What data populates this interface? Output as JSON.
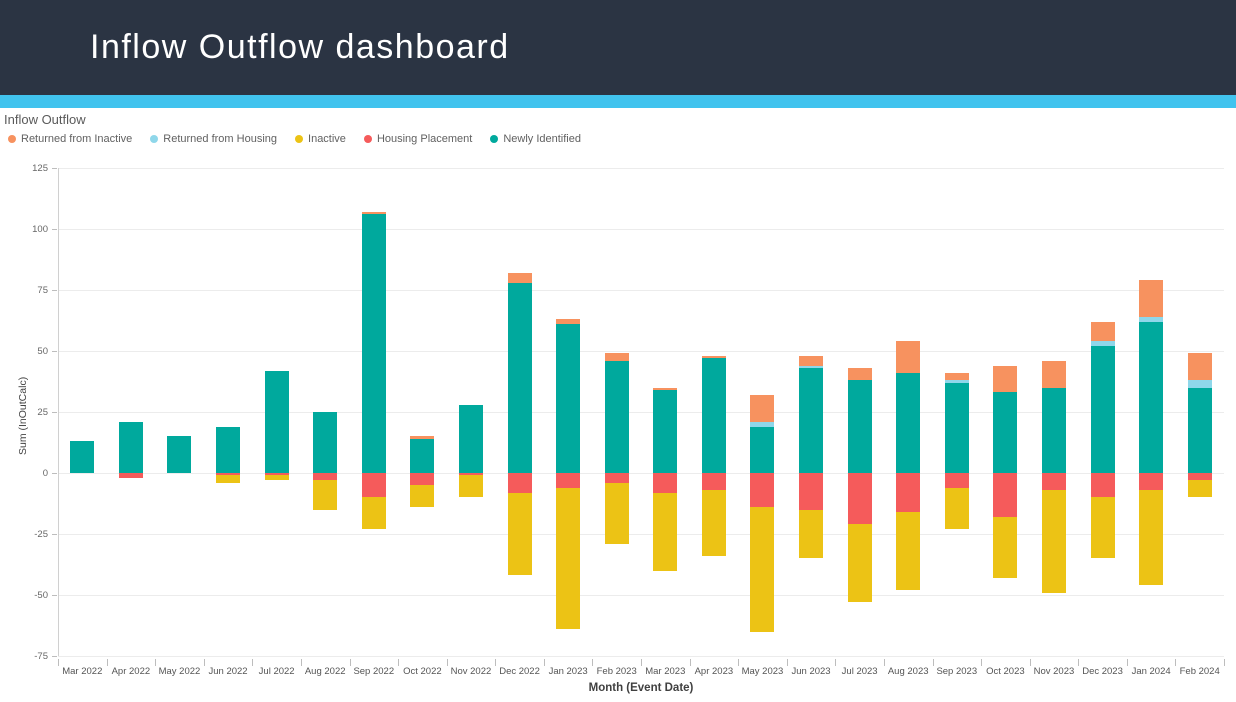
{
  "header": {
    "title": "Inflow Outflow dashboard"
  },
  "chart": {
    "title": "Inflow Outflow",
    "xlabel": "Month (Event Date)",
    "ylabel": "Sum (InOutCalc)"
  },
  "chart_data": {
    "type": "bar",
    "stacked": true,
    "title": "Inflow Outflow",
    "xlabel": "Month (Event Date)",
    "ylabel": "Sum (InOutCalc)",
    "ylim": [
      -75,
      125
    ],
    "yticks": [
      125,
      100,
      75,
      50,
      25,
      0,
      -25,
      -50,
      -75
    ],
    "grid": true,
    "legend_position": "top-left",
    "categories": [
      "Mar 2022",
      "Apr 2022",
      "May 2022",
      "Jun 2022",
      "Jul 2022",
      "Aug 2022",
      "Sep 2022",
      "Oct 2022",
      "Nov 2022",
      "Dec 2022",
      "Jan 2023",
      "Feb 2023",
      "Mar 2023",
      "Apr 2023",
      "May 2023",
      "Jun 2023",
      "Jul 2023",
      "Aug 2023",
      "Sep 2023",
      "Oct 2023",
      "Nov 2023",
      "Dec 2023",
      "Jan 2024",
      "Feb 2024"
    ],
    "series": [
      {
        "name": "Returned from Inactive",
        "color": "#F7925F",
        "values": [
          0,
          0,
          0,
          0,
          0,
          0,
          1,
          1,
          0,
          4,
          2,
          3,
          1,
          1,
          11,
          4,
          5,
          13,
          3,
          11,
          11,
          8,
          15,
          11
        ]
      },
      {
        "name": "Returned from Housing",
        "color": "#8FD7EA",
        "values": [
          0,
          0,
          0,
          0,
          0,
          0,
          0,
          0,
          0,
          0,
          0,
          0,
          0,
          0,
          2,
          1,
          0,
          0,
          1,
          0,
          0,
          2,
          2,
          3
        ]
      },
      {
        "name": "Inactive",
        "color": "#ECC315",
        "values": [
          0,
          0,
          0,
          -3,
          -2,
          -12,
          -13,
          -9,
          -9,
          -34,
          -58,
          -25,
          -32,
          -27,
          -51,
          -20,
          -32,
          -32,
          -17,
          -25,
          -42,
          -25,
          -39,
          -7
        ]
      },
      {
        "name": "Housing Placement",
        "color": "#F55B5B",
        "values": [
          0,
          -2,
          0,
          -1,
          -1,
          -3,
          -10,
          -5,
          -1,
          -8,
          -6,
          -4,
          -8,
          -7,
          -14,
          -15,
          -21,
          -16,
          -6,
          -18,
          -7,
          -10,
          -7,
          -3
        ]
      },
      {
        "name": "Newly Identified",
        "color": "#00A99D",
        "values": [
          13,
          21,
          15,
          19,
          42,
          25,
          106,
          14,
          28,
          78,
          61,
          46,
          34,
          47,
          19,
          43,
          38,
          41,
          37,
          33,
          35,
          52,
          62,
          35
        ]
      }
    ]
  }
}
